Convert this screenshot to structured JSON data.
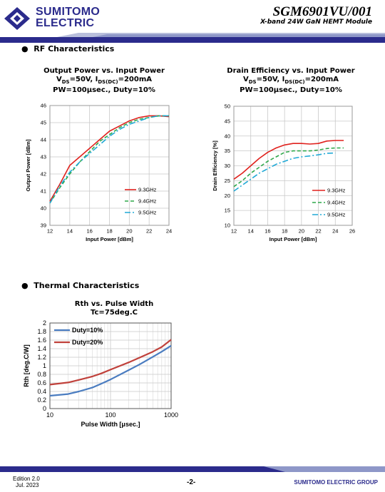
{
  "header": {
    "company_line1": "SUMITOMO",
    "company_line2": "ELECTRIC",
    "product": "SGM6901VU/001",
    "subtitle": "X-band 24W GaN HEMT Module"
  },
  "sections": {
    "rf": "RF Characteristics",
    "thermal": "Thermal Characteristics"
  },
  "chart_titles": {
    "c1_line1": "Output Power vs. Input Power",
    "c1_line3": "PW=100μsec., Duty=10%",
    "c2_line1": "Drain Efficiency vs. Input Power",
    "c2_line3": "PW=100μsec., Duty=10%",
    "c3_line1": "Rth vs. Pulse Width",
    "c3_line2": "Tc=75deg.C",
    "cond_vds": "V",
    "cond_vds_sub": "DS",
    "cond_vds_val": "=50V, I",
    "cond_ids_sub": "DS(DC)",
    "cond_ids_val": "=200mA"
  },
  "colors": {
    "brand": "#2b2b8c",
    "red": "#e0211d",
    "green": "#2ea84a",
    "cyan": "#21a9d6",
    "blue": "#4a7cc0",
    "darkred": "#c0413b"
  },
  "chart_data": [
    {
      "type": "line",
      "title": "Output Power vs. Input Power",
      "xlabel": "Input Power  [dBm]",
      "ylabel": "Output Power  [dBm]",
      "xlim": [
        12,
        24
      ],
      "ylim": [
        39,
        46
      ],
      "xticks": [
        12,
        14,
        16,
        18,
        20,
        22,
        24
      ],
      "yticks": [
        39,
        40,
        41,
        42,
        43,
        44,
        45,
        46
      ],
      "grid": true,
      "legend_position": "bottom-right",
      "series": [
        {
          "name": "9.3GHz",
          "x": [
            12,
            13,
            14,
            15,
            16,
            17,
            18,
            19,
            20,
            21,
            22,
            23,
            24
          ],
          "y": [
            40.4,
            41.4,
            42.5,
            43.0,
            43.5,
            44.0,
            44.5,
            44.8,
            45.1,
            45.3,
            45.4,
            45.4,
            45.35
          ]
        },
        {
          "name": "9.4GHz",
          "x": [
            12,
            13,
            14,
            15,
            16,
            17,
            18,
            19,
            20,
            21,
            22,
            23,
            24
          ],
          "y": [
            40.3,
            41.2,
            42.0,
            42.7,
            43.3,
            43.9,
            44.3,
            44.7,
            45.0,
            45.2,
            45.3,
            45.4,
            45.4
          ]
        },
        {
          "name": "9.5GHz",
          "x": [
            12,
            13,
            14,
            15,
            16,
            17,
            18,
            19,
            20,
            21,
            22,
            23,
            24
          ],
          "y": [
            40.3,
            41.3,
            42.1,
            42.7,
            43.2,
            43.7,
            44.2,
            44.6,
            44.9,
            45.1,
            45.3,
            45.4,
            45.4
          ]
        }
      ]
    },
    {
      "type": "line",
      "title": "Drain Efficiency vs. Input Power",
      "xlabel": "Input Power  [dBm]",
      "ylabel": "Drain Efficiency  [%]",
      "xlim": [
        12,
        26
      ],
      "ylim": [
        10,
        50
      ],
      "xticks": [
        12,
        14,
        16,
        18,
        20,
        22,
        24,
        26
      ],
      "yticks": [
        10,
        15,
        20,
        25,
        30,
        35,
        40,
        45,
        50
      ],
      "grid": true,
      "legend_position": "bottom-right",
      "series": [
        {
          "name": "9.3GHz",
          "x": [
            12,
            13,
            14,
            15,
            16,
            17,
            18,
            19,
            20,
            21,
            22,
            23,
            24,
            25
          ],
          "y": [
            25.5,
            27.5,
            30.0,
            32.5,
            34.5,
            36.0,
            37.0,
            37.5,
            37.5,
            37.3,
            37.5,
            38.3,
            38.5,
            38.5
          ]
        },
        {
          "name": "9.4GHz",
          "x": [
            12,
            13,
            14,
            15,
            16,
            17,
            18,
            19,
            20,
            21,
            22,
            23,
            24,
            25
          ],
          "y": [
            23.0,
            25.0,
            27.5,
            29.5,
            31.5,
            33.0,
            34.5,
            35.0,
            35.0,
            35.0,
            35.3,
            35.8,
            36.0,
            36.0
          ]
        },
        {
          "name": "9.5GHz",
          "x": [
            12,
            13,
            14,
            15,
            16,
            17,
            18,
            19,
            20,
            21,
            22,
            23,
            24
          ],
          "y": [
            21.5,
            23.5,
            25.5,
            27.5,
            29.0,
            30.5,
            31.5,
            32.5,
            33.0,
            33.3,
            33.7,
            34.2,
            34.3
          ]
        }
      ]
    },
    {
      "type": "line",
      "title": "Rth vs. Pulse Width",
      "subtitle": "Tc=75deg.C",
      "xlabel": "Pulse Width [μsec.]",
      "ylabel": "Rth [deg.C/W]",
      "xscale": "log",
      "xlim": [
        10,
        1000
      ],
      "ylim": [
        0,
        2
      ],
      "xticks": [
        10,
        100,
        1000
      ],
      "yticks": [
        0,
        0.2,
        0.4,
        0.6,
        0.8,
        1,
        1.2,
        1.4,
        1.6,
        1.8,
        2
      ],
      "grid": true,
      "legend_position": "top-left",
      "series": [
        {
          "name": "Duty=10%",
          "x": [
            10,
            20,
            30,
            50,
            70,
            100,
            200,
            300,
            500,
            700,
            1000
          ],
          "y": [
            0.3,
            0.34,
            0.4,
            0.49,
            0.58,
            0.68,
            0.9,
            1.03,
            1.21,
            1.33,
            1.47
          ]
        },
        {
          "name": "Duty=20%",
          "x": [
            10,
            20,
            30,
            50,
            70,
            100,
            200,
            300,
            500,
            700,
            1000
          ],
          "y": [
            0.56,
            0.61,
            0.67,
            0.75,
            0.82,
            0.91,
            1.08,
            1.19,
            1.33,
            1.44,
            1.61
          ]
        }
      ]
    }
  ],
  "footer": {
    "edition": "Edition 2.0",
    "date": "Jul. 2023",
    "page": "-2-",
    "group": "SUMITOMO ELECTRIC GROUP"
  }
}
